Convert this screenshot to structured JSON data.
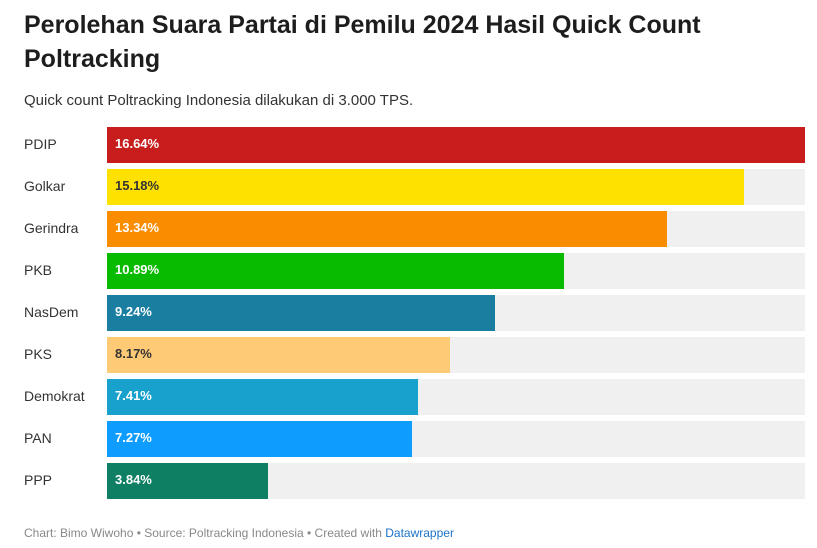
{
  "title": "Perolehan Suara Partai di Pemilu 2024 Hasil Quick Count Poltracking",
  "subtitle": "Quick count Poltracking Indonesia dilakukan di 3.000 TPS.",
  "footer": {
    "credits": "Chart: Bimo Wiwoho • Source: Poltracking Indonesia • Created with ",
    "tool": "Datawrapper"
  },
  "chart_data": {
    "type": "bar",
    "orientation": "horizontal",
    "xlim": [
      0,
      16.64
    ],
    "grid": false,
    "categories": [
      "PDIP",
      "Golkar",
      "Gerindra",
      "PKB",
      "NasDem",
      "PKS",
      "Demokrat",
      "PAN",
      "PPP"
    ],
    "values": [
      16.64,
      15.18,
      13.34,
      10.89,
      9.24,
      8.17,
      7.41,
      7.27,
      3.84
    ],
    "labels": [
      "16.64%",
      "15.18%",
      "13.34%",
      "10.89%",
      "9.24%",
      "8.17%",
      "7.41%",
      "7.27%",
      "3.84%"
    ],
    "colors": [
      "#c71e1d",
      "#ffe100",
      "#fa8c00",
      "#09bb00",
      "#1a7ea0",
      "#ffca76",
      "#18a1cd",
      "#0f9cff",
      "#0f7f64"
    ],
    "label_colors": [
      "#ffffff",
      "#333333",
      "#ffffff",
      "#ffffff",
      "#ffffff",
      "#333333",
      "#ffffff",
      "#ffffff",
      "#ffffff"
    ]
  }
}
